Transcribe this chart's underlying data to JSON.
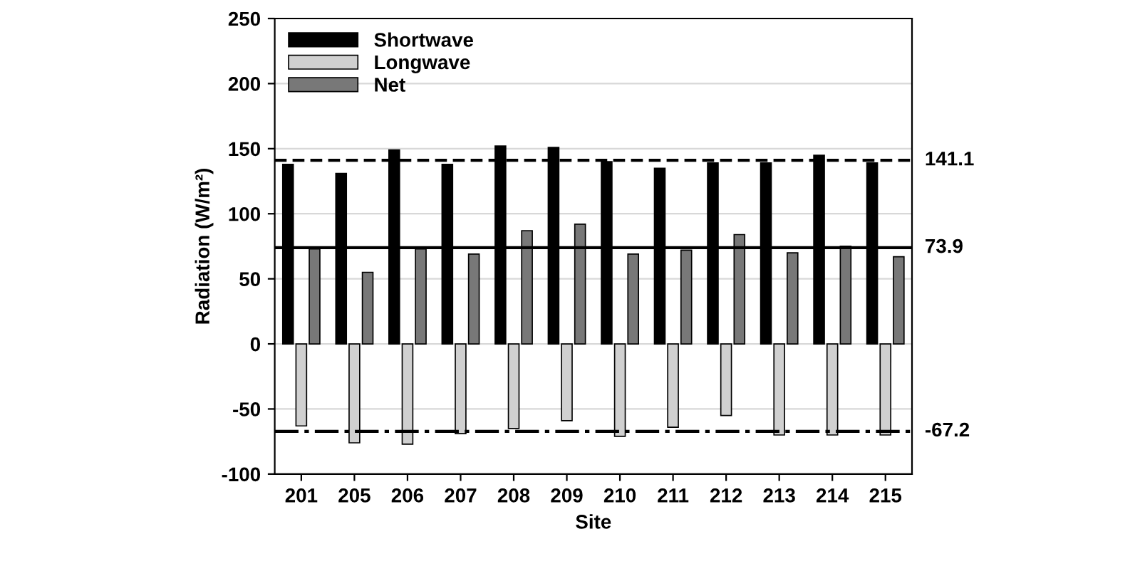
{
  "chart_data": {
    "type": "bar",
    "xlabel": "Site",
    "ylabel": "Radiation (W/m²)",
    "categories": [
      "201",
      "205",
      "206",
      "207",
      "208",
      "209",
      "210",
      "211",
      "212",
      "213",
      "214",
      "215"
    ],
    "series": [
      {
        "name": "Shortwave",
        "color": "#000000",
        "values": [
          138,
          131,
          149,
          138,
          152,
          151,
          140,
          135,
          139,
          139,
          145,
          139
        ]
      },
      {
        "name": "Longwave",
        "color": "#d0d0d0",
        "values": [
          -63,
          -76,
          -77,
          -69,
          -65,
          -59,
          -71,
          -64,
          -55,
          -70,
          -70,
          -70
        ]
      },
      {
        "name": "Net",
        "color": "#787878",
        "values": [
          73,
          55,
          73,
          69,
          87,
          92,
          69,
          72,
          84,
          70,
          75,
          67
        ]
      }
    ],
    "ylim": [
      -100,
      250
    ],
    "yticks": [
      -100,
      -50,
      0,
      50,
      100,
      150,
      200,
      250
    ],
    "grid": "y",
    "legend": "top left",
    "ref_lines": [
      {
        "axis": "y",
        "value": 141.1,
        "label": "141.1",
        "line_style": "dashed",
        "color": "#000000"
      },
      {
        "axis": "y",
        "value": 73.9,
        "label": "73.9",
        "line_style": "solid",
        "color": "#000000"
      },
      {
        "axis": "y",
        "value": -67.2,
        "label": "-67.2",
        "line_style": "dashdot",
        "color": "#000000"
      }
    ]
  }
}
